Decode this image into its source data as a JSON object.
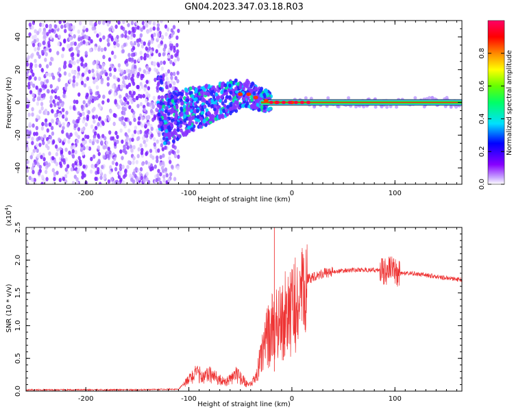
{
  "title": "GN04.2023.347.03.18.R03",
  "chart_data": [
    {
      "type": "heatmap",
      "xlabel": "Height of straight line (km)",
      "ylabel": "Frequency (Hz)",
      "xlim": [
        -258,
        165
      ],
      "ylim": [
        -50,
        50
      ],
      "xticks": [
        -200,
        -100,
        0,
        100
      ],
      "xtick_labels": [
        "-200",
        "-100",
        "0",
        "100"
      ],
      "yticks": [
        -40,
        -20,
        0,
        20,
        40
      ],
      "ytick_labels": [
        "-40",
        "-20",
        "0",
        "20",
        "40"
      ],
      "colorbar": {
        "label": "Normalized spectral amplitude",
        "range": [
          0,
          1
        ],
        "ticks": [
          0.0,
          0.2,
          0.4,
          0.6,
          0.8
        ],
        "tick_labels": [
          "0.0",
          "0.2",
          "0.4",
          "0.6",
          "0.8"
        ],
        "colormap": [
          "#ffffff",
          "#8800ff",
          "#0000ff",
          "#00e0ff",
          "#00ff00",
          "#ffff00",
          "#ff8800",
          "#ff0000",
          "#ff0066"
        ]
      },
      "ridge": [
        {
          "x": -125,
          "y": -12
        },
        {
          "x": -110,
          "y": -8
        },
        {
          "x": -100,
          "y": -5
        },
        {
          "x": -90,
          "y": -3
        },
        {
          "x": -75,
          "y": 0
        },
        {
          "x": -60,
          "y": 3
        },
        {
          "x": -50,
          "y": 5
        },
        {
          "x": -42,
          "y": 5
        },
        {
          "x": -35,
          "y": 3
        },
        {
          "x": -25,
          "y": 1
        },
        {
          "x": -15,
          "y": 0
        },
        {
          "x": 0,
          "y": 0
        },
        {
          "x": 50,
          "y": 0
        },
        {
          "x": 100,
          "y": 0
        },
        {
          "x": 165,
          "y": 0
        }
      ],
      "noise_region": {
        "x_from": -258,
        "x_to": -110
      }
    },
    {
      "type": "line",
      "xlabel": "Height of straight line (km)",
      "ylabel": "SNR (10 * v/v)",
      "scale_label": "(x10",
      "scale_exp": "4",
      "xlim": [
        -258,
        165
      ],
      "ylim": [
        0,
        2.5
      ],
      "xticks": [
        -200,
        -100,
        0,
        100
      ],
      "xtick_labels": [
        "-200",
        "-100",
        "0",
        "100"
      ],
      "yticks": [
        0,
        0.5,
        1.0,
        1.5,
        2.0,
        2.5
      ],
      "ytick_labels": [
        "0.0",
        "0.5",
        "1.0",
        "1.5",
        "2.0",
        "2.5"
      ],
      "series": [
        {
          "color": "#ee3333",
          "x": [
            -258,
            -200,
            -150,
            -110,
            -100,
            -95,
            -90,
            -85,
            -80,
            -75,
            -70,
            -65,
            -60,
            -55,
            -50,
            -45,
            -40,
            -35,
            -30,
            -25,
            -20,
            -15,
            -10,
            -5,
            0,
            5,
            10,
            20,
            30,
            40,
            50,
            60,
            70,
            80,
            90,
            95,
            100,
            105,
            110,
            120,
            130,
            140,
            150,
            165
          ],
          "y": [
            0.02,
            0.02,
            0.02,
            0.03,
            0.2,
            0.3,
            0.3,
            0.25,
            0.3,
            0.25,
            0.2,
            0.15,
            0.2,
            0.3,
            0.25,
            0.15,
            0.1,
            0.25,
            0.6,
            0.9,
            1.1,
            1.2,
            1.3,
            1.4,
            1.45,
            1.55,
            1.65,
            1.75,
            1.8,
            1.82,
            1.84,
            1.85,
            1.85,
            1.85,
            1.84,
            1.85,
            1.82,
            1.8,
            1.8,
            1.79,
            1.77,
            1.75,
            1.73,
            1.7
          ]
        }
      ]
    }
  ]
}
